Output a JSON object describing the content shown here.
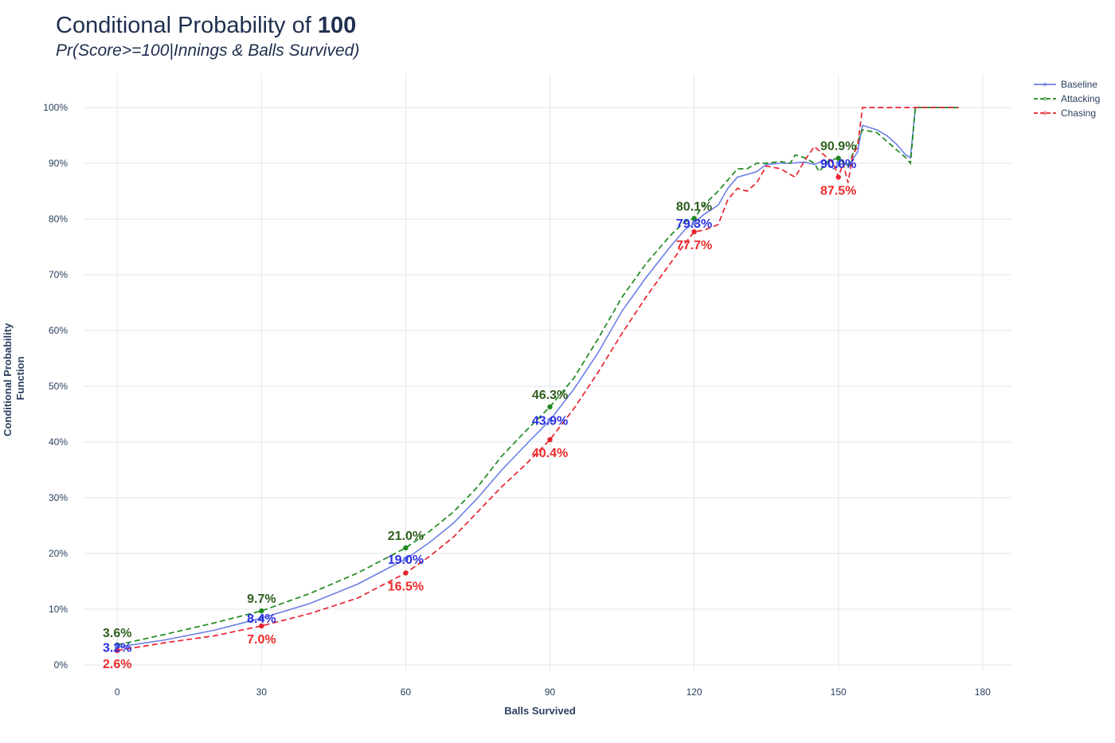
{
  "header": {
    "title_prefix": "Conditional Probability of ",
    "title_bold": "100",
    "subtitle": "Pr(Score>=100|Innings & Balls Survived)"
  },
  "chart_data": {
    "type": "line",
    "title": "Conditional Probability of 100",
    "subtitle": "Pr(Score>=100|Innings & Balls Survived)",
    "xlabel": "Balls Survived",
    "ylabel": "Conditional Probability Function",
    "xlim": [
      -7,
      186
    ],
    "ylim": [
      -1,
      106
    ],
    "x_ticks": [
      0,
      30,
      60,
      90,
      120,
      150,
      180
    ],
    "x_tick_labels": [
      "0",
      "30",
      "60",
      "90",
      "120",
      "150",
      "180"
    ],
    "y_ticks": [
      0,
      10,
      20,
      30,
      40,
      50,
      60,
      70,
      80,
      90,
      100
    ],
    "y_tick_labels": [
      "0%",
      "10%",
      "20%",
      "30%",
      "40%",
      "50%",
      "60%",
      "70%",
      "80%",
      "90%",
      "100%"
    ],
    "grid": true,
    "legend_position": "top-right",
    "series": [
      {
        "name": "Baseline",
        "color": "#6c7fe6",
        "dash": "solid",
        "x": [
          0,
          10,
          20,
          30,
          40,
          50,
          60,
          65,
          70,
          75,
          80,
          85,
          90,
          95,
          100,
          105,
          110,
          115,
          118,
          120,
          122,
          125,
          127,
          129,
          131,
          133,
          135,
          138,
          140,
          143,
          145,
          147,
          149,
          151,
          152,
          154,
          155,
          158,
          160,
          162,
          164,
          165,
          166,
          170,
          175
        ],
        "y": [
          3.2,
          4.5,
          6.2,
          8.4,
          11.0,
          14.5,
          19.0,
          22.0,
          25.5,
          30.0,
          35.0,
          39.5,
          43.9,
          49.5,
          56.0,
          63.5,
          69.5,
          75.0,
          78.0,
          79.3,
          80.8,
          82.5,
          85.5,
          87.5,
          88.0,
          88.5,
          89.8,
          90.0,
          90.0,
          90.2,
          89.8,
          90.5,
          89.0,
          90.0,
          89.5,
          92.0,
          96.8,
          96.0,
          95.0,
          93.5,
          91.5,
          91.0,
          100.0,
          100.0,
          100.0
        ]
      },
      {
        "name": "Attacking",
        "color": "#1e8a1e",
        "dash": "dash",
        "x": [
          0,
          10,
          20,
          30,
          40,
          50,
          60,
          65,
          70,
          75,
          80,
          85,
          90,
          95,
          100,
          105,
          110,
          115,
          118,
          120,
          122,
          125,
          127,
          129,
          131,
          133,
          135,
          138,
          140,
          141,
          143,
          145,
          146,
          148,
          150,
          152,
          155,
          158,
          160,
          162,
          164,
          165,
          166,
          170,
          175
        ],
        "y": [
          3.6,
          5.5,
          7.5,
          9.7,
          12.8,
          16.5,
          21.0,
          24.0,
          27.5,
          32.0,
          37.5,
          42.0,
          46.3,
          51.5,
          58.5,
          66.0,
          72.0,
          77.0,
          79.5,
          80.1,
          82.5,
          85.0,
          87.0,
          89.0,
          89.0,
          90.0,
          90.0,
          90.3,
          90.0,
          91.5,
          91.0,
          90.0,
          88.5,
          90.5,
          90.9,
          89.5,
          96.0,
          95.5,
          94.0,
          92.5,
          91.0,
          90.0,
          100.0,
          100.0,
          100.0
        ]
      },
      {
        "name": "Chasing",
        "color": "#e8242e",
        "dash": "dash",
        "x": [
          0,
          10,
          20,
          30,
          40,
          50,
          60,
          65,
          70,
          75,
          80,
          85,
          90,
          95,
          100,
          105,
          110,
          115,
          118,
          120,
          122,
          125,
          127,
          129,
          131,
          133,
          135,
          138,
          140,
          141,
          143,
          145,
          147,
          149,
          150,
          151,
          152,
          153,
          154,
          155,
          160,
          165,
          170,
          175
        ],
        "y": [
          2.6,
          4.0,
          5.2,
          7.0,
          9.2,
          12.0,
          16.5,
          19.5,
          23.0,
          27.5,
          32.0,
          36.0,
          40.4,
          46.0,
          52.5,
          59.5,
          66.0,
          72.0,
          75.5,
          77.7,
          78.0,
          79.0,
          83.5,
          85.5,
          85.0,
          86.5,
          89.5,
          89.0,
          88.0,
          87.5,
          90.5,
          93.0,
          91.5,
          90.0,
          87.5,
          90.0,
          86.5,
          91.5,
          93.0,
          100.0,
          100.0,
          100.0,
          100.0,
          100.0
        ]
      }
    ],
    "annotations": [
      {
        "series": "Attacking",
        "x": 0,
        "y": 3.6,
        "text": "3.6%",
        "pos": "above"
      },
      {
        "series": "Baseline",
        "x": 0,
        "y": 3.2,
        "text": "3.2%",
        "pos": "center"
      },
      {
        "series": "Chasing",
        "x": 0,
        "y": 2.6,
        "text": "2.6%",
        "pos": "below"
      },
      {
        "series": "Attacking",
        "x": 30,
        "y": 9.7,
        "text": "9.7%",
        "pos": "above"
      },
      {
        "series": "Baseline",
        "x": 30,
        "y": 8.4,
        "text": "8.4%",
        "pos": "center"
      },
      {
        "series": "Chasing",
        "x": 30,
        "y": 7.0,
        "text": "7.0%",
        "pos": "below"
      },
      {
        "series": "Attacking",
        "x": 60,
        "y": 21.0,
        "text": "21.0%",
        "pos": "above"
      },
      {
        "series": "Baseline",
        "x": 60,
        "y": 19.0,
        "text": "19.0%",
        "pos": "center"
      },
      {
        "series": "Chasing",
        "x": 60,
        "y": 16.5,
        "text": "16.5%",
        "pos": "below"
      },
      {
        "series": "Attacking",
        "x": 90,
        "y": 46.3,
        "text": "46.3%",
        "pos": "above"
      },
      {
        "series": "Baseline",
        "x": 90,
        "y": 43.9,
        "text": "43.9%",
        "pos": "center"
      },
      {
        "series": "Chasing",
        "x": 90,
        "y": 40.4,
        "text": "40.4%",
        "pos": "below"
      },
      {
        "series": "Attacking",
        "x": 120,
        "y": 80.1,
        "text": "80.1%",
        "pos": "above"
      },
      {
        "series": "Baseline",
        "x": 120,
        "y": 79.3,
        "text": "79.3%",
        "pos": "center"
      },
      {
        "series": "Chasing",
        "x": 120,
        "y": 77.7,
        "text": "77.7%",
        "pos": "below"
      },
      {
        "series": "Attacking",
        "x": 150,
        "y": 90.9,
        "text": "90.9%",
        "pos": "above"
      },
      {
        "series": "Baseline",
        "x": 150,
        "y": 90.0,
        "text": "90.0%",
        "pos": "center"
      },
      {
        "series": "Chasing",
        "x": 150,
        "y": 87.5,
        "text": "87.5%",
        "pos": "below"
      }
    ]
  },
  "colors": {
    "baseline": "#6c7fe6",
    "attacking": "#1e8a1e",
    "chasing": "#e8242e",
    "attacking_label": "#2e5e1e",
    "baseline_label": "#2b2fe0",
    "chasing_label": "#ee2a2a"
  }
}
